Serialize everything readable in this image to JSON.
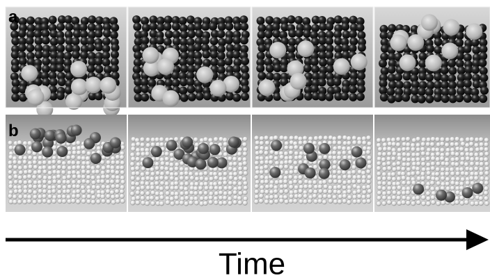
{
  "panels": [
    {
      "label": "a"
    },
    {
      "label": "b"
    }
  ],
  "axis": {
    "label": "Time"
  }
}
